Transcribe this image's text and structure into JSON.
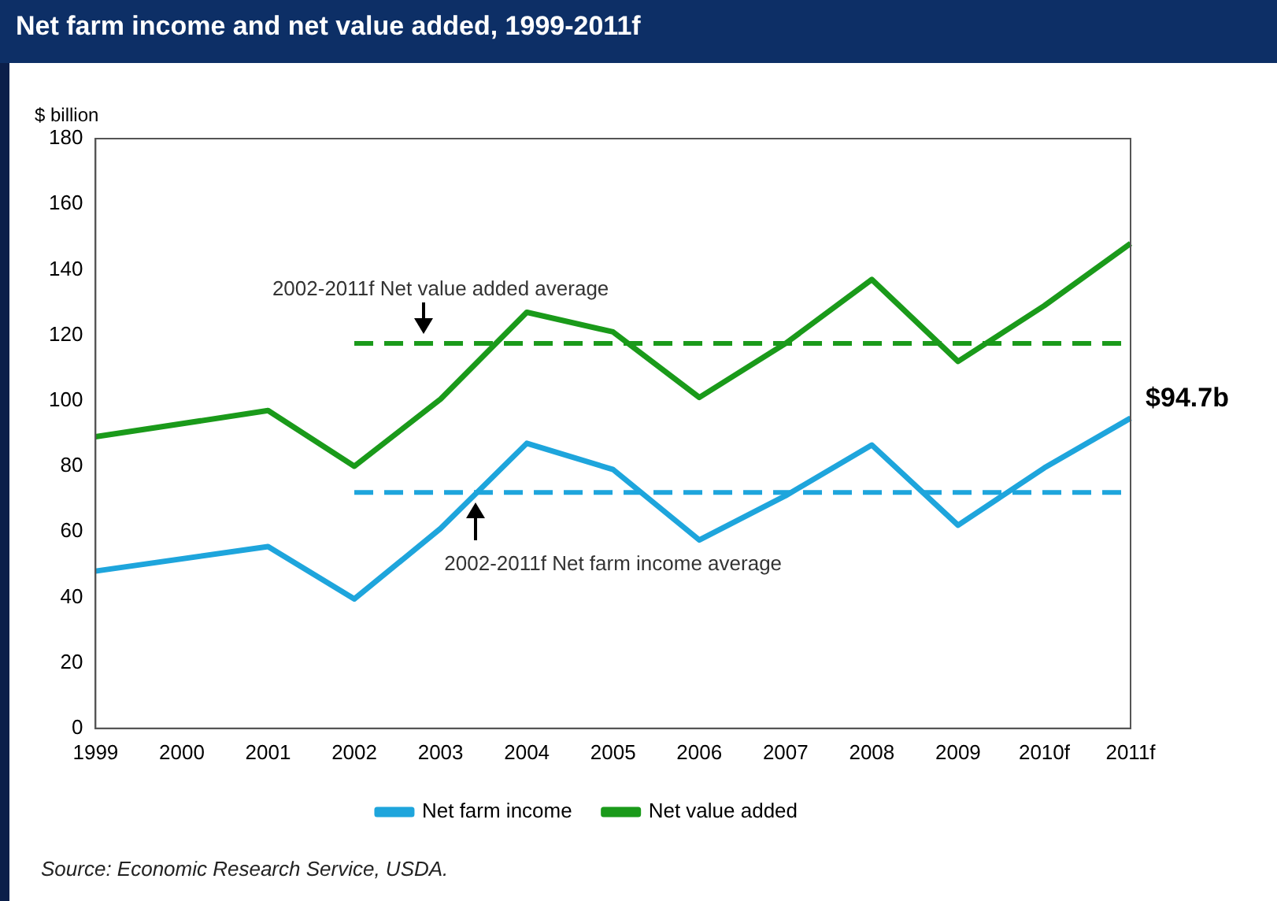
{
  "chart_data": {
    "type": "line",
    "title": "Net farm income and net value added, 1999-2011f",
    "ylabel": "$ billion",
    "categories": [
      "1999",
      "2000",
      "2001",
      "2002",
      "2003",
      "2004",
      "2005",
      "2006",
      "2007",
      "2008",
      "2009",
      "2010f",
      "2011f"
    ],
    "series": [
      {
        "name": "Net farm income",
        "color": "#1ea5dc",
        "values": [
          48,
          null,
          55.5,
          39.5,
          61,
          87,
          79,
          57.5,
          71,
          86.5,
          62,
          79.5,
          94.7
        ]
      },
      {
        "name": "Net value added",
        "color": "#1a9a1a",
        "values": [
          89,
          null,
          97,
          80,
          100.5,
          127,
          121,
          101,
          117.5,
          137,
          112,
          129,
          148
        ]
      }
    ],
    "ylim": [
      0,
      180
    ],
    "yticks": [
      0,
      20,
      40,
      60,
      80,
      100,
      120,
      140,
      160,
      180
    ],
    "grid": false,
    "legend": "bottom",
    "marker": "none",
    "line_style": "solid",
    "ref_lines": [
      {
        "axis": "y",
        "value": 117.5,
        "label": "2002-2011f Net value added average",
        "color": "#1a9a1a",
        "line_style": "dashed"
      },
      {
        "axis": "y",
        "value": 72,
        "label": "2002-2011f Net farm income average",
        "color": "#1ea5dc",
        "line_style": "dashed"
      }
    ],
    "annotations": [
      {
        "text": "$94.7b",
        "x": "2011f",
        "y": 94.7
      },
      "Source: Economic Research Service, USDA."
    ]
  }
}
